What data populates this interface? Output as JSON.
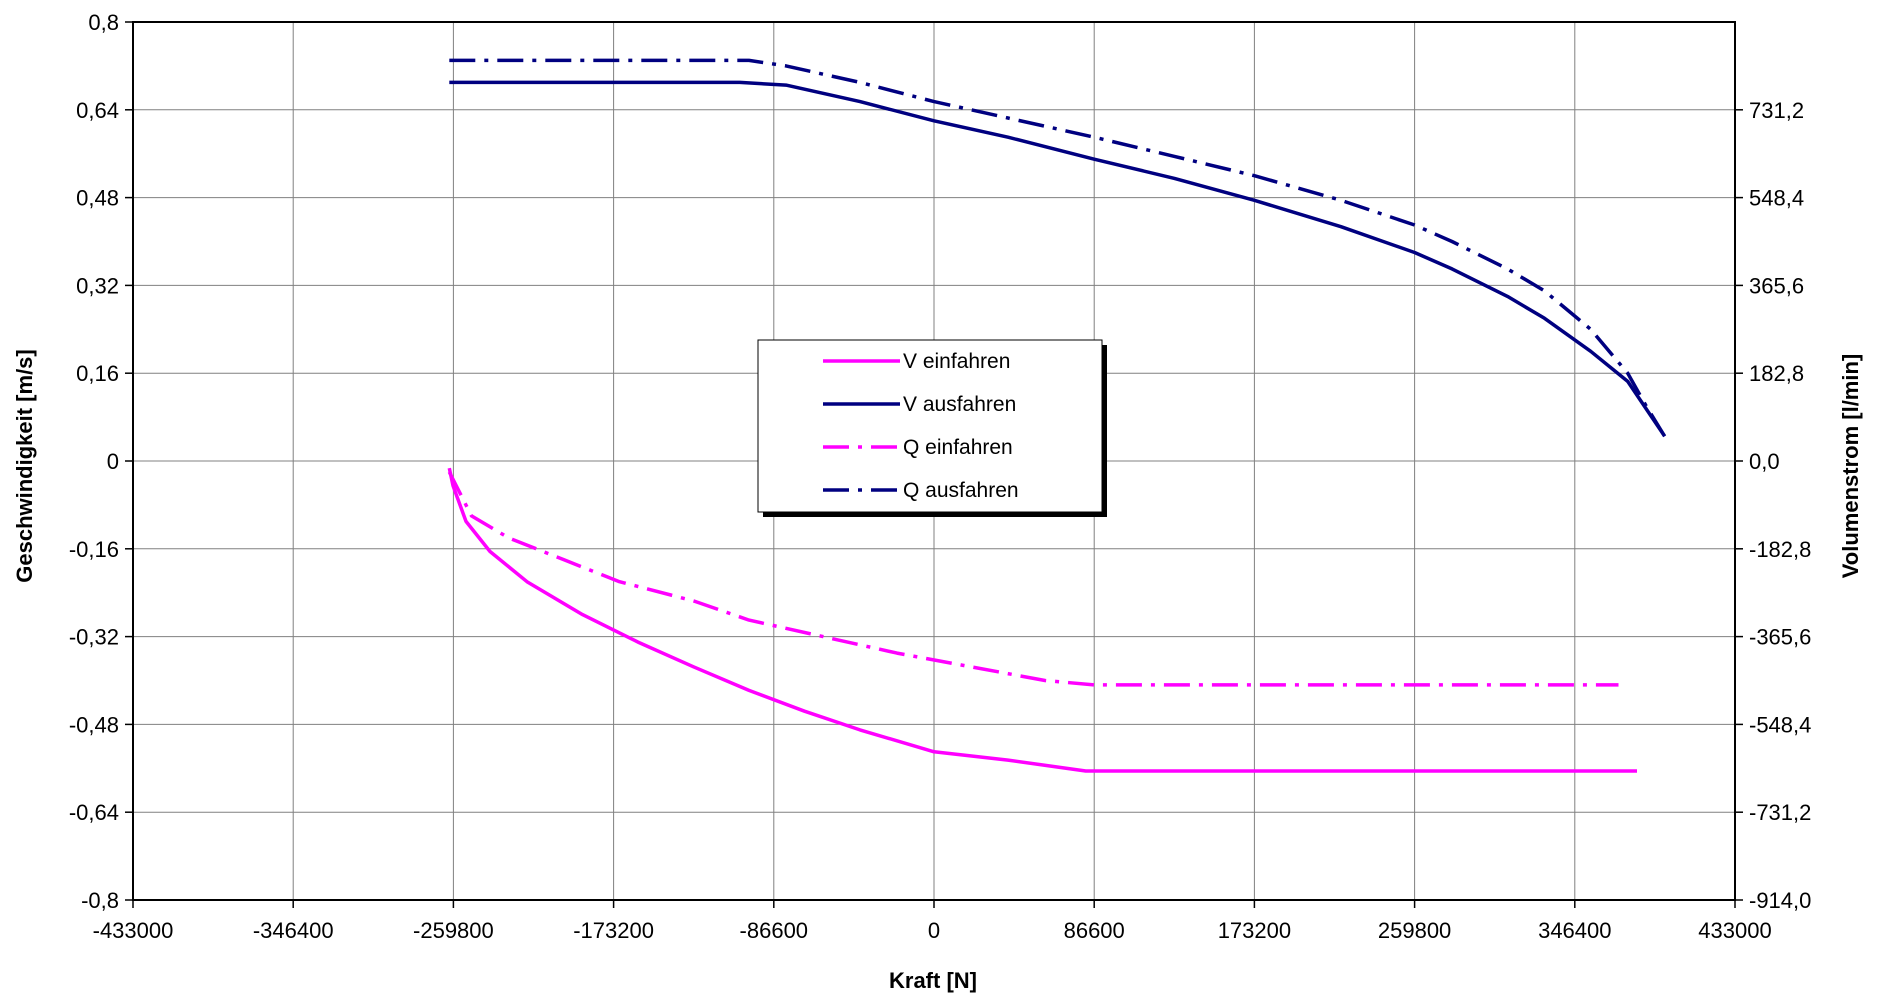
{
  "chart_data": {
    "type": "line",
    "xlabel": "Kraft [N]",
    "ylabel": "Geschwindigkeit [m/s]",
    "y2label": "Volumenstrom [l/min]",
    "xlim": [
      -433000,
      433000
    ],
    "ylim": [
      -0.8,
      0.8
    ],
    "y2lim": [
      -914.0,
      914.0
    ],
    "x_ticks": [
      "-433000",
      "-346400",
      "-259800",
      "-173200",
      "-86600",
      "0",
      "86600",
      "173200",
      "259800",
      "346400",
      "433000"
    ],
    "y_ticks": [
      "0,8",
      "0,64",
      "0,48",
      "0,32",
      "0,16",
      "0",
      "-0,16",
      "-0,32",
      "-0,48",
      "-0,64",
      "-0,8"
    ],
    "y2_ticks": [
      "731,2",
      "548,4",
      "365,6",
      "182,8",
      "0,0",
      "-182,8",
      "-365,6",
      "-548,4",
      "-731,2",
      "-914,0"
    ],
    "grid": true,
    "legend_position": "center",
    "series": [
      {
        "name": "V einfahren",
        "color": "#ff00ff",
        "dash": "solid",
        "axis": "left",
        "x": [
          -262000,
          -260000,
          -253000,
          -240000,
          -220000,
          -190000,
          -160000,
          -130000,
          -100000,
          -70000,
          -40000,
          0,
          40000,
          82000,
          380000
        ],
        "y": [
          -0.013,
          -0.045,
          -0.11,
          -0.165,
          -0.22,
          -0.28,
          -0.33,
          -0.375,
          -0.418,
          -0.456,
          -0.49,
          -0.53,
          -0.545,
          -0.565,
          -0.565
        ]
      },
      {
        "name": "V ausfahren",
        "color": "#000080",
        "dash": "solid",
        "axis": "left",
        "x": [
          -262000,
          -105000,
          -80000,
          -40000,
          0,
          40000,
          86600,
          130000,
          173200,
          220000,
          259800,
          280000,
          310000,
          330000,
          355000,
          375000,
          385000,
          395000
        ],
        "y": [
          0.69,
          0.69,
          0.685,
          0.655,
          0.62,
          0.59,
          0.55,
          0.515,
          0.475,
          0.427,
          0.38,
          0.35,
          0.3,
          0.26,
          0.2,
          0.145,
          0.095,
          0.045
        ]
      },
      {
        "name": "Q einfahren",
        "color": "#ff00ff",
        "dash": "dashdot",
        "axis": "left",
        "x": [
          -262000,
          -250000,
          -230000,
          -200000,
          -170000,
          -130000,
          -100000,
          -60000,
          -20000,
          20000,
          60000,
          86600,
          370000
        ],
        "y": [
          -0.02,
          -0.1,
          -0.14,
          -0.18,
          -0.22,
          -0.255,
          -0.29,
          -0.32,
          -0.35,
          -0.375,
          -0.4,
          -0.408,
          -0.408
        ]
      },
      {
        "name": "Q ausfahren",
        "color": "#000080",
        "dash": "dashdot",
        "axis": "left",
        "x": [
          -262000,
          -100000,
          -80000,
          -40000,
          0,
          40000,
          86600,
          130000,
          173200,
          220000,
          259800,
          280000,
          310000,
          330000,
          355000,
          375000,
          385000,
          395000
        ],
        "y": [
          0.73,
          0.73,
          0.72,
          0.69,
          0.655,
          0.625,
          0.59,
          0.555,
          0.52,
          0.475,
          0.43,
          0.4,
          0.35,
          0.31,
          0.24,
          0.16,
          0.1,
          0.045
        ]
      }
    ]
  }
}
